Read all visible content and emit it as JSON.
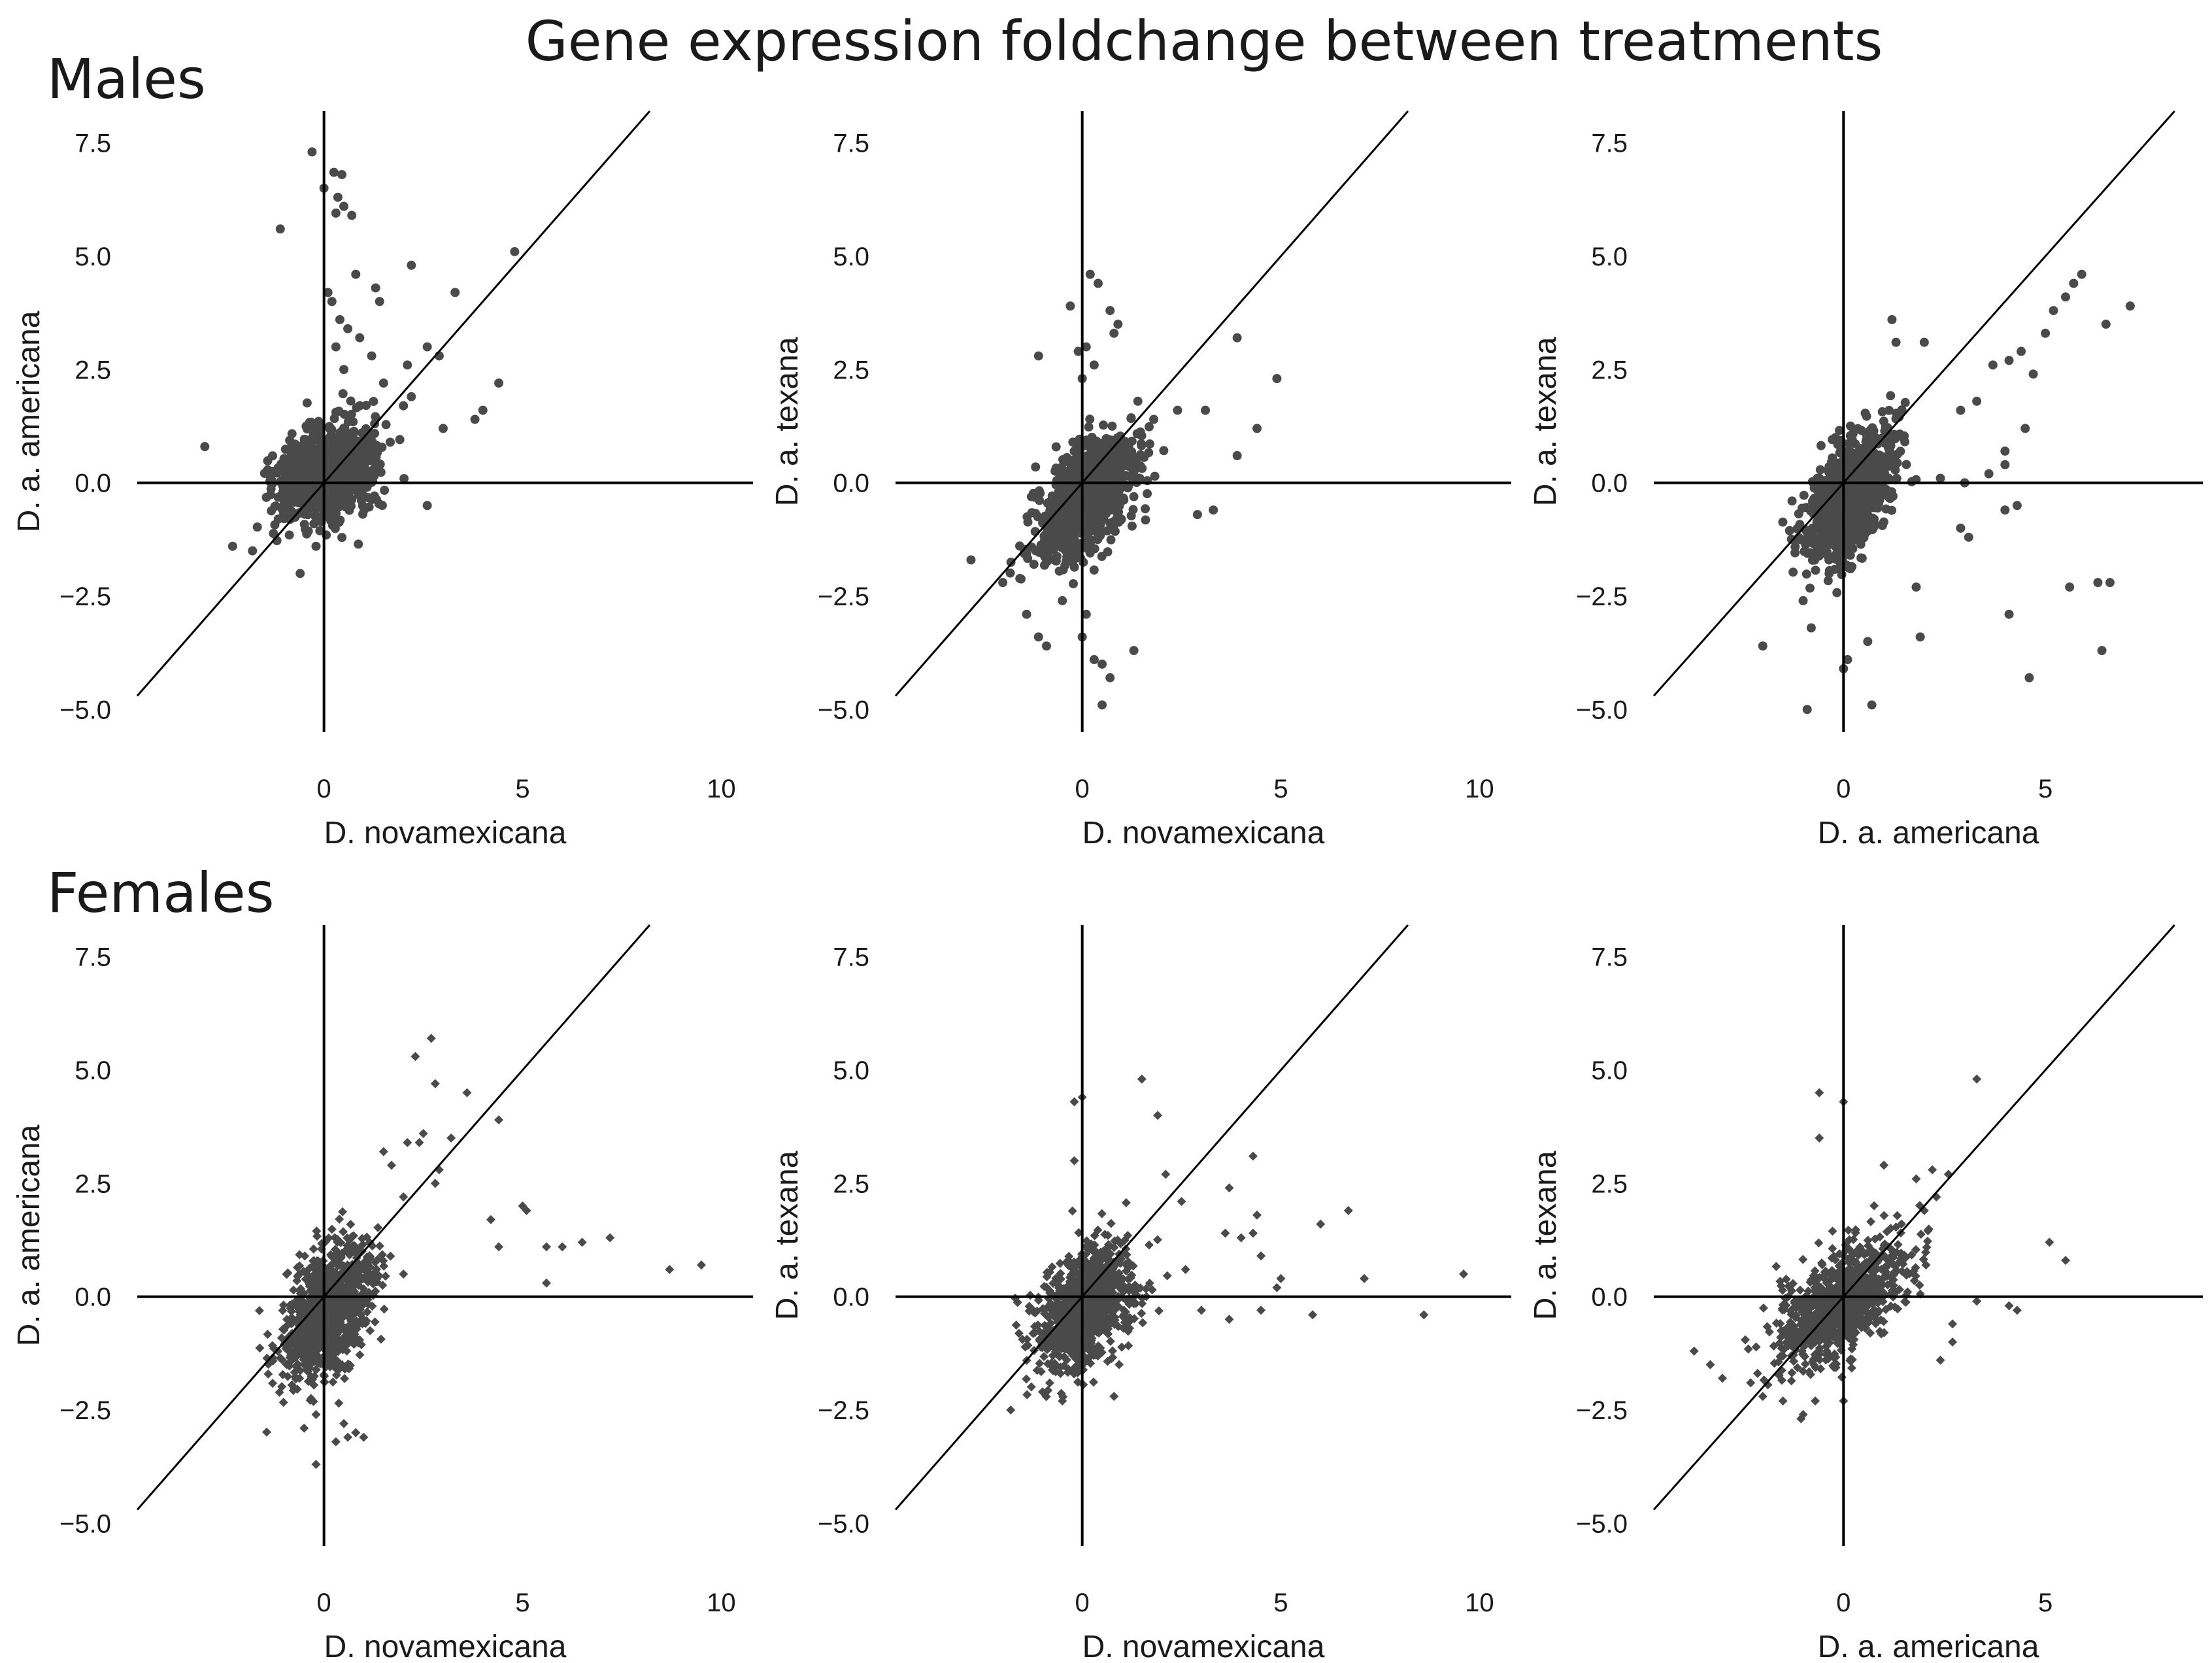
{
  "figure": {
    "title": "Gene expression foldchange between treatments",
    "row_labels": [
      "Males",
      "Females"
    ]
  },
  "chart_data": [
    {
      "type": "scatter",
      "row": "Males",
      "marker": "circle",
      "xlabel": "D. novamexicana",
      "ylabel": "D. a. americana",
      "xlim": [
        -4.7,
        10.8
      ],
      "ylim": [
        -5.5,
        8.2
      ],
      "xticks": [
        0,
        5,
        10
      ],
      "xtick_labels": [
        "0",
        "5",
        "10"
      ],
      "yticks": [
        -5,
        -2.5,
        0,
        2.5,
        5,
        7.5
      ],
      "ytick_labels": [
        "−5.0",
        "−2.5",
        "0.0",
        "2.5",
        "5.0",
        "7.5"
      ],
      "reference_lines": [
        "x=0",
        "y=0",
        "y=x"
      ],
      "cluster": {
        "n": 1000,
        "mean_x": 0.1,
        "mean_y": 0.25,
        "sd_x": 0.6,
        "sd_y": 0.5,
        "rho": 0.3
      },
      "points": [
        {
          "x": -0.3,
          "y": 7.3
        },
        {
          "x": 0.0,
          "y": 6.5
        },
        {
          "x": 0.25,
          "y": 6.85
        },
        {
          "x": 0.45,
          "y": 6.8
        },
        {
          "x": 0.35,
          "y": 6.3
        },
        {
          "x": 0.5,
          "y": 6.1
        },
        {
          "x": 0.7,
          "y": 5.9
        },
        {
          "x": 0.3,
          "y": 5.95
        },
        {
          "x": -1.1,
          "y": 5.6
        },
        {
          "x": 0.8,
          "y": 4.6
        },
        {
          "x": 1.3,
          "y": 4.3
        },
        {
          "x": 2.2,
          "y": 4.8
        },
        {
          "x": 4.8,
          "y": 5.1
        },
        {
          "x": 3.3,
          "y": 4.2
        },
        {
          "x": 1.4,
          "y": 4.0
        },
        {
          "x": 0.2,
          "y": 4.0
        },
        {
          "x": 0.1,
          "y": 4.2
        },
        {
          "x": 0.4,
          "y": 3.6
        },
        {
          "x": 0.6,
          "y": 3.4
        },
        {
          "x": 0.9,
          "y": 3.2
        },
        {
          "x": 2.6,
          "y": 3.0
        },
        {
          "x": 0.3,
          "y": 3.0
        },
        {
          "x": 1.2,
          "y": 2.8
        },
        {
          "x": 2.1,
          "y": 2.6
        },
        {
          "x": 0.5,
          "y": 2.5
        },
        {
          "x": 2.9,
          "y": 2.8
        },
        {
          "x": 4.4,
          "y": 2.2
        },
        {
          "x": 4.0,
          "y": 1.6
        },
        {
          "x": 3.8,
          "y": 1.4
        },
        {
          "x": 3.0,
          "y": 1.2
        },
        {
          "x": 2.2,
          "y": 1.9
        },
        {
          "x": 2.0,
          "y": 1.7
        },
        {
          "x": -3.0,
          "y": 0.8
        },
        {
          "x": -2.3,
          "y": -1.4
        },
        {
          "x": -1.8,
          "y": -1.5
        },
        {
          "x": -0.6,
          "y": -2.0
        },
        {
          "x": -0.2,
          "y": -1.4
        },
        {
          "x": 2.6,
          "y": -0.5
        },
        {
          "x": 0.9,
          "y": 1.7
        },
        {
          "x": 1.5,
          "y": 2.2
        }
      ]
    },
    {
      "type": "scatter",
      "row": "Males",
      "marker": "circle",
      "xlabel": "D. novamexicana",
      "ylabel": "D. a. texana",
      "xlim": [
        -4.7,
        10.8
      ],
      "ylim": [
        -5.5,
        8.2
      ],
      "xticks": [
        0,
        5,
        10
      ],
      "xtick_labels": [
        "0",
        "5",
        "10"
      ],
      "yticks": [
        -5,
        -2.5,
        0,
        2.5,
        5,
        7.5
      ],
      "ytick_labels": [
        "−5.0",
        "−2.5",
        "0.0",
        "2.5",
        "5.0",
        "7.5"
      ],
      "reference_lines": [
        "x=0",
        "y=0",
        "y=x"
      ],
      "cluster": {
        "n": 1000,
        "mean_x": 0.1,
        "mean_y": -0.3,
        "sd_x": 0.6,
        "sd_y": 0.65,
        "rho": 0.5
      },
      "points": [
        {
          "x": 0.2,
          "y": 4.6
        },
        {
          "x": 0.4,
          "y": 4.4
        },
        {
          "x": -0.3,
          "y": 3.9
        },
        {
          "x": 0.7,
          "y": 3.8
        },
        {
          "x": 0.9,
          "y": 3.5
        },
        {
          "x": 0.8,
          "y": 3.3
        },
        {
          "x": 0.1,
          "y": 3.0
        },
        {
          "x": 3.9,
          "y": 3.2
        },
        {
          "x": -0.1,
          "y": 2.9
        },
        {
          "x": -1.1,
          "y": 2.8
        },
        {
          "x": 0.3,
          "y": 2.6
        },
        {
          "x": 4.9,
          "y": 2.3
        },
        {
          "x": 0.0,
          "y": 2.3
        },
        {
          "x": 4.4,
          "y": 1.2
        },
        {
          "x": 3.9,
          "y": 0.6
        },
        {
          "x": 1.4,
          "y": 1.8
        },
        {
          "x": 2.4,
          "y": 1.6
        },
        {
          "x": 3.1,
          "y": 1.6
        },
        {
          "x": 1.8,
          "y": 1.4
        },
        {
          "x": 3.3,
          "y": -0.6
        },
        {
          "x": 2.9,
          "y": -0.7
        },
        {
          "x": -2.8,
          "y": -1.7
        },
        {
          "x": -2.0,
          "y": -2.2
        },
        {
          "x": -1.4,
          "y": -2.9
        },
        {
          "x": -1.1,
          "y": -3.4
        },
        {
          "x": -0.9,
          "y": -3.6
        },
        {
          "x": 0.0,
          "y": -3.4
        },
        {
          "x": 0.3,
          "y": -3.9
        },
        {
          "x": 0.5,
          "y": -4.0
        },
        {
          "x": 0.7,
          "y": -4.3
        },
        {
          "x": 0.5,
          "y": -4.9
        },
        {
          "x": 1.3,
          "y": -3.7
        },
        {
          "x": 0.1,
          "y": -2.9
        },
        {
          "x": -0.5,
          "y": -2.6
        }
      ]
    },
    {
      "type": "scatter",
      "row": "Males",
      "marker": "circle",
      "xlabel": "D. a. americana",
      "ylabel": "D. a. texana",
      "xlim": [
        -4.7,
        8.9
      ],
      "ylim": [
        -5.5,
        8.2
      ],
      "xticks": [
        0,
        5
      ],
      "xtick_labels": [
        "0",
        "5"
      ],
      "yticks": [
        -5,
        -2.5,
        0,
        2.5,
        5,
        7.5
      ],
      "ytick_labels": [
        "−5.0",
        "−2.5",
        "0.0",
        "2.5",
        "5.0",
        "7.5"
      ],
      "reference_lines": [
        "x=0",
        "y=0",
        "y=x"
      ],
      "cluster": {
        "n": 1000,
        "mean_x": 0.15,
        "mean_y": -0.3,
        "sd_x": 0.55,
        "sd_y": 0.7,
        "rho": 0.55
      },
      "points": [
        {
          "x": 5.9,
          "y": 4.6
        },
        {
          "x": 5.7,
          "y": 4.4
        },
        {
          "x": 5.5,
          "y": 4.1
        },
        {
          "x": 5.2,
          "y": 3.8
        },
        {
          "x": 7.1,
          "y": 3.9
        },
        {
          "x": 6.5,
          "y": 3.5
        },
        {
          "x": 5.0,
          "y": 3.3
        },
        {
          "x": 4.4,
          "y": 2.9
        },
        {
          "x": 4.1,
          "y": 2.7
        },
        {
          "x": 3.7,
          "y": 2.6
        },
        {
          "x": 1.2,
          "y": 3.6
        },
        {
          "x": 1.3,
          "y": 3.1
        },
        {
          "x": 2.0,
          "y": 3.1
        },
        {
          "x": 4.7,
          "y": 2.4
        },
        {
          "x": 3.3,
          "y": 1.8
        },
        {
          "x": 2.9,
          "y": 1.6
        },
        {
          "x": 4.5,
          "y": 1.2
        },
        {
          "x": 4.0,
          "y": 0.7
        },
        {
          "x": 4.0,
          "y": 0.4
        },
        {
          "x": 3.6,
          "y": 0.2
        },
        {
          "x": 3.0,
          "y": 0.0
        },
        {
          "x": 2.4,
          "y": 0.1
        },
        {
          "x": 4.3,
          "y": -0.5
        },
        {
          "x": 4.0,
          "y": -0.6
        },
        {
          "x": 2.9,
          "y": -1.0
        },
        {
          "x": 3.1,
          "y": -1.2
        },
        {
          "x": 4.1,
          "y": -2.9
        },
        {
          "x": 5.6,
          "y": -2.3
        },
        {
          "x": 6.3,
          "y": -2.2
        },
        {
          "x": 6.6,
          "y": -2.2
        },
        {
          "x": 6.4,
          "y": -3.7
        },
        {
          "x": 4.6,
          "y": -4.3
        },
        {
          "x": 1.9,
          "y": -3.4
        },
        {
          "x": 0.6,
          "y": -3.5
        },
        {
          "x": 0.7,
          "y": -4.9
        },
        {
          "x": 0.0,
          "y": -4.1
        },
        {
          "x": 0.1,
          "y": -3.9
        },
        {
          "x": -0.9,
          "y": -5.0
        },
        {
          "x": -2.0,
          "y": -3.6
        },
        {
          "x": -0.8,
          "y": -3.2
        },
        {
          "x": 1.8,
          "y": -2.3
        },
        {
          "x": -1.0,
          "y": -2.6
        }
      ]
    },
    {
      "type": "scatter",
      "row": "Females",
      "marker": "diamond",
      "xlabel": "D. novamexicana",
      "ylabel": "D. a. americana",
      "xlim": [
        -4.7,
        10.8
      ],
      "ylim": [
        -5.5,
        8.2
      ],
      "xticks": [
        0,
        5,
        10
      ],
      "xtick_labels": [
        "0",
        "5",
        "10"
      ],
      "yticks": [
        -5,
        -2.5,
        0,
        2.5,
        5,
        7.5
      ],
      "ytick_labels": [
        "−5.0",
        "−2.5",
        "0.0",
        "2.5",
        "5.0",
        "7.5"
      ],
      "reference_lines": [
        "x=0",
        "y=0",
        "y=x"
      ],
      "cluster": {
        "n": 1000,
        "mean_x": 0.15,
        "mean_y": -0.3,
        "sd_x": 0.55,
        "sd_y": 0.75,
        "rho": 0.45
      },
      "points": [
        {
          "x": 2.7,
          "y": 5.7
        },
        {
          "x": 2.3,
          "y": 5.3
        },
        {
          "x": 2.8,
          "y": 4.7
        },
        {
          "x": 3.6,
          "y": 4.5
        },
        {
          "x": 4.4,
          "y": 3.9
        },
        {
          "x": 2.1,
          "y": 3.4
        },
        {
          "x": 1.5,
          "y": 3.2
        },
        {
          "x": 2.4,
          "y": 3.4
        },
        {
          "x": 2.5,
          "y": 3.6
        },
        {
          "x": 3.2,
          "y": 3.5
        },
        {
          "x": 1.7,
          "y": 2.9
        },
        {
          "x": 2.9,
          "y": 2.8
        },
        {
          "x": 2.8,
          "y": 2.5
        },
        {
          "x": 2.0,
          "y": 2.2
        },
        {
          "x": 5.0,
          "y": 2.0
        },
        {
          "x": 5.1,
          "y": 1.9
        },
        {
          "x": 4.2,
          "y": 1.7
        },
        {
          "x": 4.4,
          "y": 1.1
        },
        {
          "x": 5.6,
          "y": 1.1
        },
        {
          "x": 6.0,
          "y": 1.1
        },
        {
          "x": 6.5,
          "y": 1.2
        },
        {
          "x": 7.2,
          "y": 1.3
        },
        {
          "x": 8.7,
          "y": 0.6
        },
        {
          "x": 9.5,
          "y": 0.7
        },
        {
          "x": 5.6,
          "y": 0.3
        },
        {
          "x": 2.0,
          "y": 0.5
        },
        {
          "x": -0.2,
          "y": -3.7
        },
        {
          "x": 0.3,
          "y": -3.2
        },
        {
          "x": 0.8,
          "y": -3.0
        },
        {
          "x": 1.0,
          "y": -3.1
        },
        {
          "x": -0.5,
          "y": -2.9
        },
        {
          "x": -0.2,
          "y": -2.6
        },
        {
          "x": 0.5,
          "y": -2.8
        },
        {
          "x": 0.6,
          "y": -3.1
        }
      ]
    },
    {
      "type": "scatter",
      "row": "Females",
      "marker": "diamond",
      "xlabel": "D. novamexicana",
      "ylabel": "D. a. texana",
      "xlim": [
        -4.7,
        10.8
      ],
      "ylim": [
        -5.5,
        8.2
      ],
      "xticks": [
        0,
        5,
        10
      ],
      "xtick_labels": [
        "0",
        "5",
        "10"
      ],
      "yticks": [
        -5,
        -2.5,
        0,
        2.5,
        5,
        7.5
      ],
      "ytick_labels": [
        "−5.0",
        "−2.5",
        "0.0",
        "2.5",
        "5.0",
        "7.5"
      ],
      "reference_lines": [
        "x=0",
        "y=0",
        "y=x"
      ],
      "cluster": {
        "n": 1000,
        "mean_x": 0.1,
        "mean_y": -0.2,
        "sd_x": 0.6,
        "sd_y": 0.7,
        "rho": 0.4
      },
      "points": [
        {
          "x": 0.0,
          "y": 4.4
        },
        {
          "x": -0.2,
          "y": 4.3
        },
        {
          "x": 1.5,
          "y": 4.8
        },
        {
          "x": 1.9,
          "y": 4.0
        },
        {
          "x": -0.2,
          "y": 3.0
        },
        {
          "x": 2.1,
          "y": 2.7
        },
        {
          "x": 4.3,
          "y": 3.1
        },
        {
          "x": 3.7,
          "y": 2.4
        },
        {
          "x": 2.5,
          "y": 2.1
        },
        {
          "x": 4.4,
          "y": 1.8
        },
        {
          "x": 6.7,
          "y": 1.9
        },
        {
          "x": 6.0,
          "y": 1.6
        },
        {
          "x": 4.3,
          "y": 1.4
        },
        {
          "x": 4.0,
          "y": 1.3
        },
        {
          "x": 3.6,
          "y": 1.4
        },
        {
          "x": 4.5,
          "y": 0.9
        },
        {
          "x": 2.6,
          "y": 0.6
        },
        {
          "x": 5.0,
          "y": 0.4
        },
        {
          "x": 4.9,
          "y": 0.2
        },
        {
          "x": 7.1,
          "y": 0.4
        },
        {
          "x": 9.6,
          "y": 0.5
        },
        {
          "x": 3.0,
          "y": -0.3
        },
        {
          "x": 3.7,
          "y": -0.5
        },
        {
          "x": 4.5,
          "y": -0.3
        },
        {
          "x": 5.8,
          "y": -0.4
        },
        {
          "x": 8.6,
          "y": -0.4
        },
        {
          "x": -1.8,
          "y": -2.5
        },
        {
          "x": -0.5,
          "y": -2.3
        },
        {
          "x": 0.8,
          "y": -2.2
        },
        {
          "x": -1.0,
          "y": -2.1
        }
      ]
    },
    {
      "type": "scatter",
      "row": "Females",
      "marker": "diamond",
      "xlabel": "D. a. americana",
      "ylabel": "D. a. texana",
      "xlim": [
        -4.7,
        8.9
      ],
      "ylim": [
        -5.5,
        8.2
      ],
      "xticks": [
        0,
        5
      ],
      "xtick_labels": [
        "0",
        "5"
      ],
      "yticks": [
        -5,
        -2.5,
        0,
        2.5,
        5,
        7.5
      ],
      "ytick_labels": [
        "−5.0",
        "−2.5",
        "0.0",
        "2.5",
        "5.0",
        "7.5"
      ],
      "reference_lines": [
        "x=0",
        "y=0",
        "y=x"
      ],
      "cluster": {
        "n": 1000,
        "mean_x": -0.1,
        "mean_y": -0.2,
        "sd_x": 0.75,
        "sd_y": 0.65,
        "rho": 0.55
      },
      "points": [
        {
          "x": -0.6,
          "y": 4.5
        },
        {
          "x": 0.0,
          "y": 4.3
        },
        {
          "x": 3.3,
          "y": 4.8
        },
        {
          "x": -0.6,
          "y": 3.5
        },
        {
          "x": 1.0,
          "y": 2.9
        },
        {
          "x": 1.8,
          "y": 2.6
        },
        {
          "x": 2.2,
          "y": 2.8
        },
        {
          "x": 2.6,
          "y": 2.7
        },
        {
          "x": 2.3,
          "y": 2.2
        },
        {
          "x": 2.0,
          "y": 1.9
        },
        {
          "x": 5.1,
          "y": 1.2
        },
        {
          "x": 5.5,
          "y": 0.8
        },
        {
          "x": 3.3,
          "y": -0.1
        },
        {
          "x": 4.1,
          "y": -0.2
        },
        {
          "x": 4.3,
          "y": -0.3
        },
        {
          "x": 2.7,
          "y": -0.6
        },
        {
          "x": 2.7,
          "y": -1.0
        },
        {
          "x": 2.4,
          "y": -1.4
        },
        {
          "x": -3.7,
          "y": -1.2
        },
        {
          "x": -3.3,
          "y": -1.5
        },
        {
          "x": -3.0,
          "y": -1.8
        },
        {
          "x": -2.3,
          "y": -1.9
        },
        {
          "x": -2.0,
          "y": -2.2
        },
        {
          "x": -1.5,
          "y": -2.3
        },
        {
          "x": -0.7,
          "y": -2.3
        },
        {
          "x": -1.0,
          "y": -2.6
        },
        {
          "x": 0.0,
          "y": -2.3
        }
      ]
    }
  ]
}
